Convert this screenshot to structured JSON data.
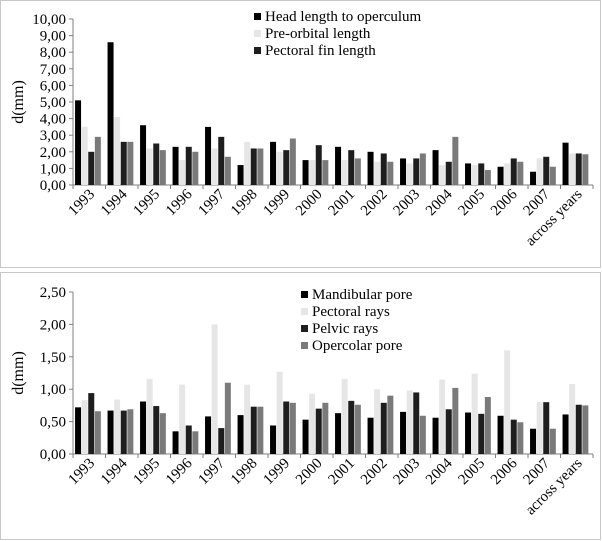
{
  "chart_data": [
    {
      "type": "bar",
      "ylabel": "d(mm)",
      "ylim": [
        0,
        10
      ],
      "ytick_step": 1,
      "yticks": [
        "0,00",
        "1,00",
        "2,00",
        "3,00",
        "4,00",
        "5,00",
        "6,00",
        "7,00",
        "8,00",
        "9,00",
        "10,00"
      ],
      "legend_position": "top-center",
      "categories": [
        "1993",
        "1994",
        "1995",
        "1996",
        "1997",
        "1998",
        "1999",
        "2000",
        "2001",
        "2002",
        "2003",
        "2004",
        "2005",
        "2006",
        "2007",
        "across  years"
      ],
      "series": [
        {
          "name": "Head length to operculum",
          "color": "#000000",
          "values": [
            5.1,
            8.6,
            3.6,
            2.3,
            3.5,
            1.2,
            2.6,
            1.5,
            2.3,
            2.0,
            1.6,
            2.1,
            1.3,
            1.1,
            0.8,
            2.55
          ]
        },
        {
          "name": "Pre-orbital length",
          "color": "#e6e6e6",
          "values": [
            3.5,
            4.1,
            2.2,
            1.5,
            2.2,
            2.6,
            2.0,
            1.5,
            1.5,
            1.4,
            1.3,
            1.2,
            1.2,
            1.3,
            1.6,
            1.9
          ]
        },
        {
          "name": "Pectoral fin length",
          "color": "#1e1e1e",
          "values": [
            2.0,
            2.6,
            2.5,
            2.3,
            2.9,
            2.2,
            2.1,
            2.4,
            2.1,
            1.9,
            1.6,
            1.4,
            1.3,
            1.6,
            1.7,
            1.9
          ]
        },
        {
          "name": "",
          "color": "#7a7a7a",
          "values": [
            2.9,
            2.6,
            2.1,
            2.0,
            1.7,
            2.2,
            2.8,
            1.5,
            1.6,
            1.4,
            1.9,
            2.9,
            0.9,
            1.4,
            1.1,
            1.85
          ]
        }
      ]
    },
    {
      "type": "bar",
      "ylabel": "d(mm)",
      "ylim": [
        0,
        2.5
      ],
      "ytick_step": 0.5,
      "yticks": [
        "0,00",
        "0,50",
        "1,00",
        "1,50",
        "2,00",
        "2,50"
      ],
      "legend_position": "top-center",
      "categories": [
        "1993",
        "1994",
        "1995",
        "1996",
        "1997",
        "1998",
        "1999",
        "2000",
        "2001",
        "2002",
        "2003",
        "2004",
        "2005",
        "2006",
        "2007",
        "across  years"
      ],
      "series": [
        {
          "name": "Mandibular pore",
          "color": "#000000",
          "values": [
            0.72,
            0.67,
            0.81,
            0.35,
            0.58,
            0.6,
            0.44,
            0.53,
            0.63,
            0.56,
            0.65,
            0.56,
            0.64,
            0.59,
            0.39,
            0.61
          ]
        },
        {
          "name": "Pectoral rays",
          "color": "#e6e6e6",
          "values": [
            0.83,
            0.84,
            1.16,
            1.07,
            2.0,
            1.07,
            1.27,
            0.93,
            1.16,
            1.0,
            0.98,
            1.15,
            1.24,
            1.6,
            0.8,
            1.08
          ]
        },
        {
          "name": "Pelvic rays",
          "color": "#1e1e1e",
          "values": [
            0.94,
            0.67,
            0.74,
            0.44,
            0.4,
            0.73,
            0.81,
            0.7,
            0.82,
            0.79,
            0.95,
            0.69,
            0.62,
            0.53,
            0.8,
            0.76
          ]
        },
        {
          "name": "Opercolar pore",
          "color": "#7a7a7a",
          "values": [
            0.66,
            0.69,
            0.63,
            0.35,
            1.1,
            0.73,
            0.79,
            0.79,
            0.76,
            0.9,
            0.59,
            1.02,
            0.88,
            0.49,
            0.39,
            0.75
          ]
        }
      ]
    }
  ]
}
